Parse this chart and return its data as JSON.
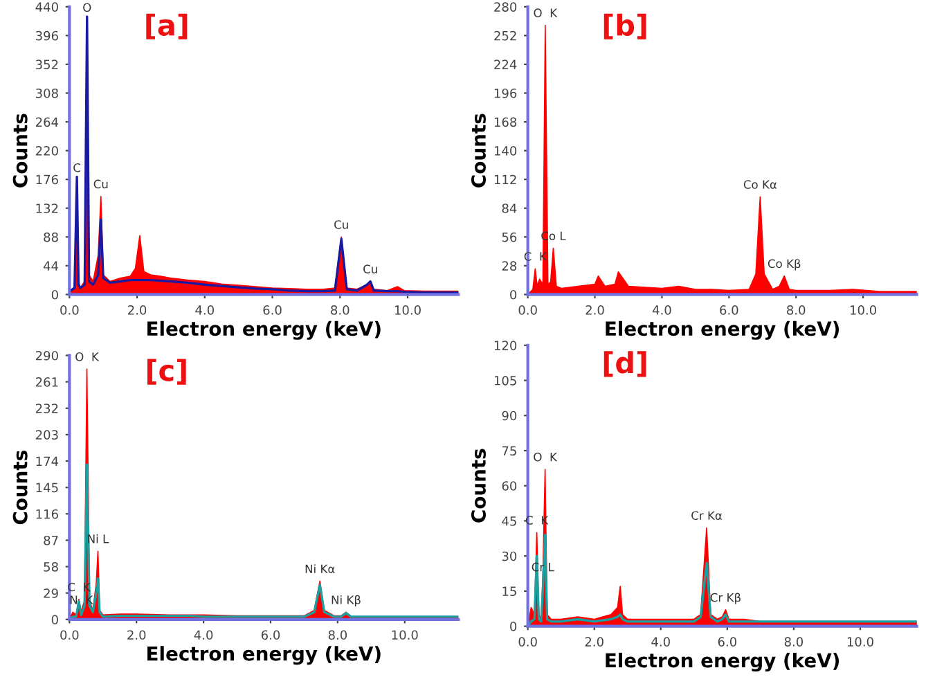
{
  "chart_data": [
    {
      "type": "area",
      "title": "[a]",
      "xlabel": "Electron energy (keV)",
      "ylabel": "Counts",
      "xlim": [
        0,
        11.5
      ],
      "ylim": [
        0,
        440
      ],
      "xticks": [
        {
          "value": 0,
          "label": "0.0"
        },
        {
          "value": 2,
          "label": "2.0"
        },
        {
          "value": 4,
          "label": "4.0"
        },
        {
          "value": 6,
          "label": "6.0"
        },
        {
          "value": 8,
          "label": "8.0"
        },
        {
          "value": 10,
          "label": "10.0"
        }
      ],
      "yticks": [
        0,
        44,
        88,
        132,
        176,
        220,
        264,
        308,
        352,
        396,
        440
      ],
      "x": [
        0,
        0.15,
        0.22,
        0.27,
        0.32,
        0.45,
        0.52,
        0.58,
        0.7,
        0.85,
        0.93,
        1.0,
        1.2,
        1.5,
        1.8,
        1.95,
        2.08,
        2.2,
        2.4,
        2.7,
        3.0,
        3.5,
        4.0,
        4.5,
        5.0,
        5.5,
        6.0,
        6.5,
        7.0,
        7.5,
        7.85,
        8.04,
        8.2,
        8.5,
        8.8,
        8.9,
        9.0,
        9.4,
        9.7,
        9.9,
        10.5,
        11.0,
        11.5
      ],
      "series": [
        {
          "color": "#ff0000",
          "values": [
            5,
            10,
            175,
            20,
            10,
            20,
            420,
            30,
            20,
            60,
            150,
            30,
            20,
            25,
            28,
            40,
            90,
            35,
            30,
            28,
            25,
            22,
            20,
            16,
            14,
            12,
            10,
            9,
            8,
            8,
            10,
            88,
            10,
            8,
            15,
            20,
            8,
            6,
            12,
            6,
            5,
            5,
            5
          ]
        },
        {
          "type": "line",
          "color": "#1a1aa0",
          "values": [
            5,
            10,
            180,
            15,
            10,
            15,
            425,
            20,
            15,
            30,
            115,
            25,
            18,
            20,
            22,
            22,
            22,
            22,
            22,
            21,
            20,
            18,
            15,
            13,
            11,
            9,
            8,
            6,
            5,
            5,
            6,
            85,
            8,
            6,
            15,
            20,
            6,
            5,
            5,
            4,
            3,
            3,
            3
          ]
        }
      ],
      "annotations": [
        {
          "text": "C",
          "x": 0.22,
          "y": 175
        },
        {
          "text": "O",
          "x": 0.52,
          "y": 420
        },
        {
          "text": "Cu",
          "x": 0.93,
          "y": 150
        },
        {
          "text": "Cu",
          "x": 8.04,
          "y": 88
        },
        {
          "text": "Cu",
          "x": 8.9,
          "y": 20
        }
      ]
    },
    {
      "type": "area",
      "title": "[b]",
      "xlabel": "Electron energy (keV)",
      "ylabel": "Counts",
      "xlim": [
        0,
        11.6
      ],
      "ylim": [
        0,
        280
      ],
      "xticks": [
        {
          "value": 0,
          "label": "0.0"
        },
        {
          "value": 2,
          "label": "2.0"
        },
        {
          "value": 4,
          "label": "4.0"
        },
        {
          "value": 6,
          "label": "6.0"
        },
        {
          "value": 8,
          "label": "8.0"
        },
        {
          "value": 10,
          "label": "10.0"
        }
      ],
      "yticks": [
        0,
        28,
        56,
        84,
        112,
        140,
        168,
        196,
        224,
        252,
        280
      ],
      "x": [
        0,
        0.15,
        0.22,
        0.28,
        0.35,
        0.45,
        0.52,
        0.6,
        0.68,
        0.76,
        0.85,
        1.0,
        1.5,
        2.0,
        2.1,
        2.3,
        2.6,
        2.7,
        3.0,
        3.5,
        4.0,
        4.5,
        5.0,
        5.5,
        6.0,
        6.6,
        6.8,
        6.93,
        7.05,
        7.3,
        7.5,
        7.65,
        7.8,
        8.0,
        9.0,
        9.7,
        10.5,
        11.6
      ],
      "series": [
        {
          "color": "#ff0000",
          "values": [
            0,
            5,
            25,
            8,
            15,
            10,
            262,
            10,
            12,
            45,
            8,
            6,
            8,
            10,
            18,
            8,
            10,
            22,
            8,
            7,
            6,
            8,
            5,
            5,
            4,
            5,
            20,
            95,
            20,
            5,
            8,
            18,
            5,
            4,
            4,
            5,
            3,
            3
          ]
        }
      ],
      "annotations": [
        {
          "text": "O  K",
          "x": 0.52,
          "y": 262
        },
        {
          "text": "C  K",
          "x": 0.22,
          "y": 25
        },
        {
          "text": "Co L",
          "x": 0.76,
          "y": 45
        },
        {
          "text": "Co Kα",
          "x": 6.93,
          "y": 95
        },
        {
          "text": "Co Kβ",
          "x": 7.65,
          "y": 18
        }
      ]
    },
    {
      "type": "area",
      "title": "[c]",
      "xlabel": "Electron energy (keV)",
      "ylabel": "Counts",
      "xlim": [
        0,
        11.6
      ],
      "ylim": [
        0,
        290
      ],
      "xticks": [
        {
          "value": 0,
          "label": "0.0"
        },
        {
          "value": 2,
          "label": "2.0"
        },
        {
          "value": 4,
          "label": "4.0"
        },
        {
          "value": 6,
          "label": "6.0"
        },
        {
          "value": 8,
          "label": "8.0"
        },
        {
          "value": 10,
          "label": "10.0"
        }
      ],
      "yticks": [
        0,
        29,
        58,
        87,
        116,
        145,
        174,
        203,
        232,
        261,
        290
      ],
      "x": [
        0,
        0.1,
        0.2,
        0.28,
        0.35,
        0.4,
        0.45,
        0.52,
        0.6,
        0.7,
        0.8,
        0.85,
        0.9,
        1.0,
        1.5,
        2.0,
        3.0,
        3.6,
        4.0,
        5.0,
        6.0,
        7.0,
        7.3,
        7.47,
        7.6,
        7.9,
        8.1,
        8.25,
        8.4,
        9.0,
        10.0,
        11.6
      ],
      "series": [
        {
          "color": "#ff0000",
          "values": [
            0,
            8,
            5,
            22,
            8,
            15,
            20,
            275,
            20,
            10,
            40,
            75,
            10,
            5,
            6,
            6,
            5,
            5,
            5,
            4,
            4,
            4,
            10,
            42,
            10,
            4,
            4,
            8,
            3,
            3,
            3,
            3
          ]
        },
        {
          "type": "line",
          "color": "#1aa0a0",
          "values": [
            0,
            3,
            3,
            20,
            5,
            10,
            15,
            170,
            15,
            8,
            30,
            45,
            8,
            3,
            4,
            4,
            4,
            4,
            3,
            3,
            3,
            3,
            8,
            38,
            8,
            3,
            3,
            7,
            3,
            3,
            3,
            3
          ]
        }
      ],
      "annotations": [
        {
          "text": "O  K",
          "x": 0.52,
          "y": 275
        },
        {
          "text": "C  K",
          "x": 0.28,
          "y": 22
        },
        {
          "text": "Ni L",
          "x": 0.85,
          "y": 75
        },
        {
          "text": "N  K",
          "x": 0.35,
          "y": 8
        },
        {
          "text": "Ni Kα",
          "x": 7.47,
          "y": 42
        },
        {
          "text": "Ni Kβ",
          "x": 8.25,
          "y": 8
        }
      ]
    },
    {
      "type": "area",
      "title": "[d]",
      "xlabel": "Electron energy (keV)",
      "ylabel": "Counts",
      "xlim": [
        0,
        11.7
      ],
      "ylim": [
        0,
        120
      ],
      "xticks": [
        {
          "value": 0,
          "label": "0.0"
        },
        {
          "value": 2,
          "label": "2.0"
        },
        {
          "value": 4,
          "label": "4.0"
        },
        {
          "value": 6,
          "label": "6.0"
        },
        {
          "value": 8,
          "label": "8.0"
        },
        {
          "value": 10,
          "label": "10.0"
        }
      ],
      "yticks": [
        0,
        15,
        30,
        45,
        60,
        75,
        90,
        105,
        120
      ],
      "x": [
        0,
        0.1,
        0.2,
        0.27,
        0.33,
        0.4,
        0.45,
        0.52,
        0.58,
        0.7,
        1.0,
        1.5,
        2.0,
        2.5,
        2.7,
        2.78,
        2.85,
        3.0,
        3.5,
        4.0,
        4.5,
        5.0,
        5.2,
        5.38,
        5.5,
        5.7,
        5.85,
        5.95,
        6.05,
        6.5,
        7.0,
        8.0,
        9.0,
        10.0,
        11.7
      ],
      "series": [
        {
          "color": "#ff0000",
          "values": [
            0,
            8,
            5,
            40,
            5,
            3,
            20,
            67,
            5,
            3,
            3,
            4,
            3,
            5,
            8,
            17,
            5,
            3,
            3,
            3,
            3,
            3,
            5,
            42,
            5,
            3,
            4,
            7,
            3,
            3,
            2,
            2,
            2,
            2,
            2
          ]
        },
        {
          "type": "line",
          "color": "#1aa0a0",
          "values": [
            0,
            2,
            3,
            30,
            3,
            2,
            15,
            39,
            3,
            2,
            2,
            3,
            2,
            3,
            4,
            5,
            3,
            2,
            2,
            2,
            2,
            2,
            4,
            27,
            4,
            2,
            3,
            5,
            2,
            2,
            2,
            2,
            2,
            2,
            2
          ]
        }
      ],
      "annotations": [
        {
          "text": "O  K",
          "x": 0.52,
          "y": 67
        },
        {
          "text": "C  K",
          "x": 0.27,
          "y": 40
        },
        {
          "text": "Cr L",
          "x": 0.45,
          "y": 20
        },
        {
          "text": "Cr Kα",
          "x": 5.38,
          "y": 42
        },
        {
          "text": "Cr Kβ",
          "x": 5.95,
          "y": 7
        }
      ]
    }
  ]
}
